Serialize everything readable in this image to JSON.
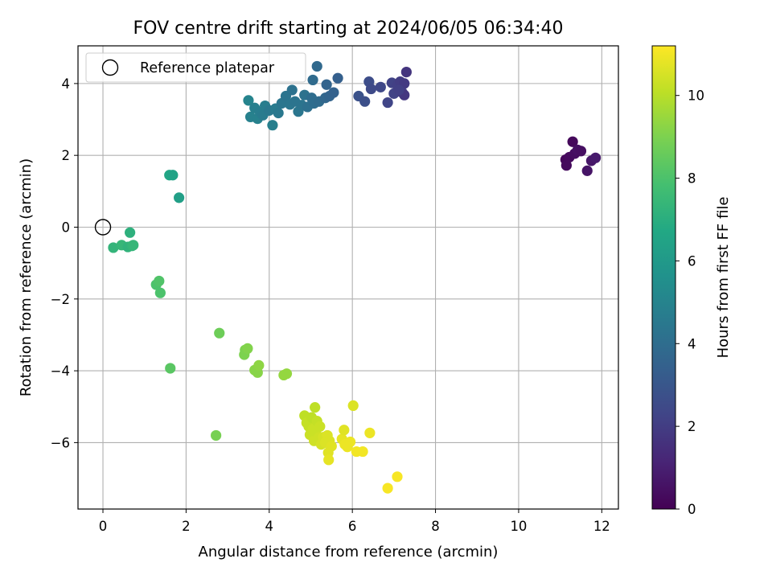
{
  "chart_data": {
    "type": "scatter",
    "title": "FOV centre drift starting at 2024/06/05 06:34:40",
    "xlabel": "Angular distance from reference (arcmin)",
    "ylabel": "Rotation from reference (arcmin)",
    "xlim": [
      -0.6,
      12.4
    ],
    "ylim": [
      -7.85,
      5.05
    ],
    "xticks": [
      0,
      2,
      4,
      6,
      8,
      10,
      12
    ],
    "yticks": [
      -6,
      -4,
      -2,
      0,
      2,
      4
    ],
    "ytick_labels": [
      "−6",
      "−4",
      "−2",
      "0",
      "2",
      "4"
    ],
    "grid": true,
    "legend": {
      "position": "top-left",
      "entries": [
        "Reference platepar"
      ]
    },
    "reference_point": {
      "x": 0,
      "y": 0,
      "marker": "open-circle"
    },
    "colorbar": {
      "label": "Hours from first FF file",
      "colormap": "viridis",
      "range": [
        0,
        11.2
      ],
      "ticks": [
        0,
        2,
        4,
        6,
        8,
        10
      ]
    },
    "series": [
      {
        "points": [
          {
            "x": 11.13,
            "y": 1.88,
            "c": 0.2
          },
          {
            "x": 11.15,
            "y": 1.72,
            "c": 0.3
          },
          {
            "x": 11.22,
            "y": 1.95,
            "c": 0.3
          },
          {
            "x": 11.3,
            "y": 2.38,
            "c": 0.25
          },
          {
            "x": 11.35,
            "y": 2.05,
            "c": 0.4
          },
          {
            "x": 11.42,
            "y": 2.15,
            "c": 0.5
          },
          {
            "x": 11.5,
            "y": 2.12,
            "c": 0.45
          },
          {
            "x": 11.65,
            "y": 1.57,
            "c": 0.6
          },
          {
            "x": 11.75,
            "y": 1.85,
            "c": 0.7
          },
          {
            "x": 11.85,
            "y": 1.93,
            "c": 0.8
          },
          {
            "x": 6.15,
            "y": 3.65,
            "c": 2.8
          },
          {
            "x": 6.3,
            "y": 3.5,
            "c": 2.7
          },
          {
            "x": 6.4,
            "y": 4.05,
            "c": 2.6
          },
          {
            "x": 6.45,
            "y": 3.85,
            "c": 2.5
          },
          {
            "x": 6.68,
            "y": 3.9,
            "c": 2.4
          },
          {
            "x": 6.85,
            "y": 3.47,
            "c": 2.3
          },
          {
            "x": 6.95,
            "y": 4.02,
            "c": 2.2
          },
          {
            "x": 7.0,
            "y": 3.72,
            "c": 2.2
          },
          {
            "x": 7.08,
            "y": 3.95,
            "c": 2.1
          },
          {
            "x": 7.15,
            "y": 4.05,
            "c": 2.0
          },
          {
            "x": 7.2,
            "y": 3.75,
            "c": 2.0
          },
          {
            "x": 7.25,
            "y": 4.0,
            "c": 1.9
          },
          {
            "x": 7.25,
            "y": 3.68,
            "c": 1.8
          },
          {
            "x": 7.3,
            "y": 4.32,
            "c": 1.7
          },
          {
            "x": 7.12,
            "y": 3.82,
            "c": 2.1
          },
          {
            "x": 3.5,
            "y": 3.53,
            "c": 5.0
          },
          {
            "x": 3.55,
            "y": 3.07,
            "c": 4.9
          },
          {
            "x": 3.65,
            "y": 3.32,
            "c": 4.8
          },
          {
            "x": 3.72,
            "y": 3.02,
            "c": 4.9
          },
          {
            "x": 3.78,
            "y": 3.2,
            "c": 4.7
          },
          {
            "x": 3.85,
            "y": 3.12,
            "c": 4.6
          },
          {
            "x": 3.9,
            "y": 3.38,
            "c": 4.7
          },
          {
            "x": 4.0,
            "y": 3.25,
            "c": 4.5
          },
          {
            "x": 4.08,
            "y": 2.84,
            "c": 4.8
          },
          {
            "x": 4.15,
            "y": 3.3,
            "c": 4.6
          },
          {
            "x": 4.22,
            "y": 3.18,
            "c": 4.5
          },
          {
            "x": 4.3,
            "y": 3.45,
            "c": 4.4
          },
          {
            "x": 4.4,
            "y": 3.65,
            "c": 4.3
          },
          {
            "x": 4.5,
            "y": 3.42,
            "c": 4.4
          },
          {
            "x": 4.55,
            "y": 3.82,
            "c": 4.2
          },
          {
            "x": 4.62,
            "y": 3.5,
            "c": 4.3
          },
          {
            "x": 4.7,
            "y": 3.22,
            "c": 4.4
          },
          {
            "x": 4.78,
            "y": 3.4,
            "c": 4.3
          },
          {
            "x": 4.85,
            "y": 3.68,
            "c": 4.2
          },
          {
            "x": 4.92,
            "y": 3.35,
            "c": 4.1
          },
          {
            "x": 5.02,
            "y": 3.6,
            "c": 4.0
          },
          {
            "x": 5.05,
            "y": 4.1,
            "c": 3.9
          },
          {
            "x": 5.08,
            "y": 3.45,
            "c": 4.0
          },
          {
            "x": 5.15,
            "y": 4.48,
            "c": 3.8
          },
          {
            "x": 5.2,
            "y": 3.5,
            "c": 3.9
          },
          {
            "x": 5.35,
            "y": 3.6,
            "c": 3.7
          },
          {
            "x": 5.38,
            "y": 3.97,
            "c": 3.6
          },
          {
            "x": 5.45,
            "y": 3.65,
            "c": 3.6
          },
          {
            "x": 5.55,
            "y": 3.75,
            "c": 3.5
          },
          {
            "x": 5.65,
            "y": 4.15,
            "c": 3.4
          },
          {
            "x": 1.6,
            "y": 1.45,
            "c": 6.6
          },
          {
            "x": 1.68,
            "y": 1.45,
            "c": 6.5
          },
          {
            "x": 1.83,
            "y": 0.82,
            "c": 6.3
          },
          {
            "x": 0.25,
            "y": -0.57,
            "c": 7.3
          },
          {
            "x": 0.45,
            "y": -0.5,
            "c": 7.4
          },
          {
            "x": 0.6,
            "y": -0.55,
            "c": 7.2
          },
          {
            "x": 0.65,
            "y": -0.15,
            "c": 7.1
          },
          {
            "x": 0.7,
            "y": -0.52,
            "c": 7.3
          },
          {
            "x": 0.73,
            "y": -0.5,
            "c": 7.4
          },
          {
            "x": 1.28,
            "y": -1.6,
            "c": 8.0
          },
          {
            "x": 1.35,
            "y": -1.5,
            "c": 8.1
          },
          {
            "x": 1.38,
            "y": -1.83,
            "c": 8.0
          },
          {
            "x": 1.62,
            "y": -3.93,
            "c": 8.3
          },
          {
            "x": 2.72,
            "y": -5.8,
            "c": 8.9
          },
          {
            "x": 2.8,
            "y": -2.95,
            "c": 8.7
          },
          {
            "x": 3.4,
            "y": -3.55,
            "c": 9.0
          },
          {
            "x": 3.42,
            "y": -3.42,
            "c": 9.0
          },
          {
            "x": 3.48,
            "y": -3.38,
            "c": 9.1
          },
          {
            "x": 3.65,
            "y": -3.98,
            "c": 9.2
          },
          {
            "x": 3.72,
            "y": -4.05,
            "c": 9.2
          },
          {
            "x": 3.75,
            "y": -3.85,
            "c": 9.3
          },
          {
            "x": 4.35,
            "y": -4.12,
            "c": 9.4
          },
          {
            "x": 4.42,
            "y": -4.08,
            "c": 9.4
          },
          {
            "x": 4.85,
            "y": -5.25,
            "c": 10.1
          },
          {
            "x": 4.9,
            "y": -5.45,
            "c": 10.2
          },
          {
            "x": 4.95,
            "y": -5.55,
            "c": 10.2
          },
          {
            "x": 4.98,
            "y": -5.78,
            "c": 10.3
          },
          {
            "x": 5.02,
            "y": -5.3,
            "c": 10.1
          },
          {
            "x": 5.05,
            "y": -5.62,
            "c": 10.3
          },
          {
            "x": 5.08,
            "y": -5.95,
            "c": 10.4
          },
          {
            "x": 5.1,
            "y": -5.02,
            "c": 10.1
          },
          {
            "x": 5.12,
            "y": -5.7,
            "c": 10.3
          },
          {
            "x": 5.15,
            "y": -5.4,
            "c": 10.2
          },
          {
            "x": 5.2,
            "y": -5.85,
            "c": 10.4
          },
          {
            "x": 5.22,
            "y": -5.55,
            "c": 10.3
          },
          {
            "x": 5.25,
            "y": -6.05,
            "c": 10.5
          },
          {
            "x": 5.3,
            "y": -5.85,
            "c": 10.5
          },
          {
            "x": 5.35,
            "y": -6.0,
            "c": 10.6
          },
          {
            "x": 5.4,
            "y": -5.8,
            "c": 10.6
          },
          {
            "x": 5.42,
            "y": -6.28,
            "c": 10.7
          },
          {
            "x": 5.43,
            "y": -6.48,
            "c": 10.8
          },
          {
            "x": 5.45,
            "y": -5.95,
            "c": 10.6
          },
          {
            "x": 5.5,
            "y": -6.1,
            "c": 10.7
          },
          {
            "x": 5.75,
            "y": -5.9,
            "c": 10.8
          },
          {
            "x": 5.8,
            "y": -5.65,
            "c": 10.7
          },
          {
            "x": 5.82,
            "y": -6.05,
            "c": 10.9
          },
          {
            "x": 5.88,
            "y": -6.12,
            "c": 10.9
          },
          {
            "x": 5.95,
            "y": -5.98,
            "c": 10.9
          },
          {
            "x": 6.02,
            "y": -4.97,
            "c": 10.6
          },
          {
            "x": 6.1,
            "y": -6.25,
            "c": 11.0
          },
          {
            "x": 6.25,
            "y": -6.25,
            "c": 11.0
          },
          {
            "x": 6.42,
            "y": -5.73,
            "c": 10.9
          },
          {
            "x": 6.85,
            "y": -7.27,
            "c": 11.1
          },
          {
            "x": 7.08,
            "y": -6.95,
            "c": 11.1
          }
        ]
      }
    ]
  }
}
